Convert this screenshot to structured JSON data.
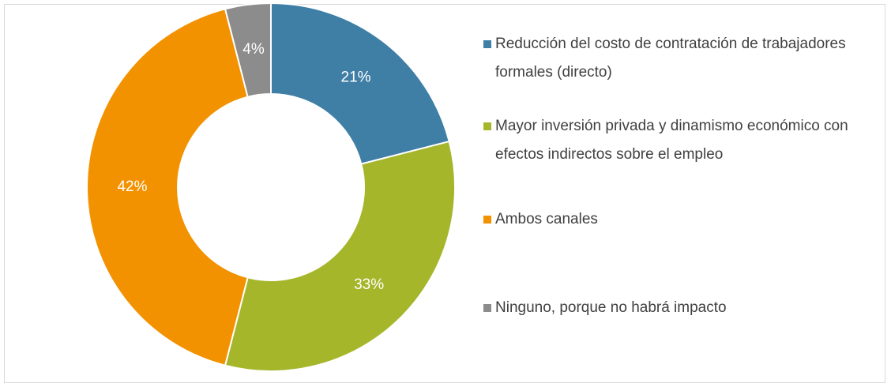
{
  "chart_data": {
    "type": "pie",
    "categories": [
      "Reducción del costo de contratación de trabajadores formales (directo)",
      "Mayor inversión privada y dinamismo económico con efectos indirectos sobre el empleo",
      "Ambos canales",
      "Ninguno, porque no habrá impacto"
    ],
    "values": [
      21,
      33,
      42,
      4
    ],
    "value_labels": [
      "21%",
      "33%",
      "42%",
      "4%"
    ],
    "colors": [
      "#3f7fa6",
      "#a5b62b",
      "#f39200",
      "#8c8c8c"
    ],
    "donut": true,
    "legend": "right"
  }
}
